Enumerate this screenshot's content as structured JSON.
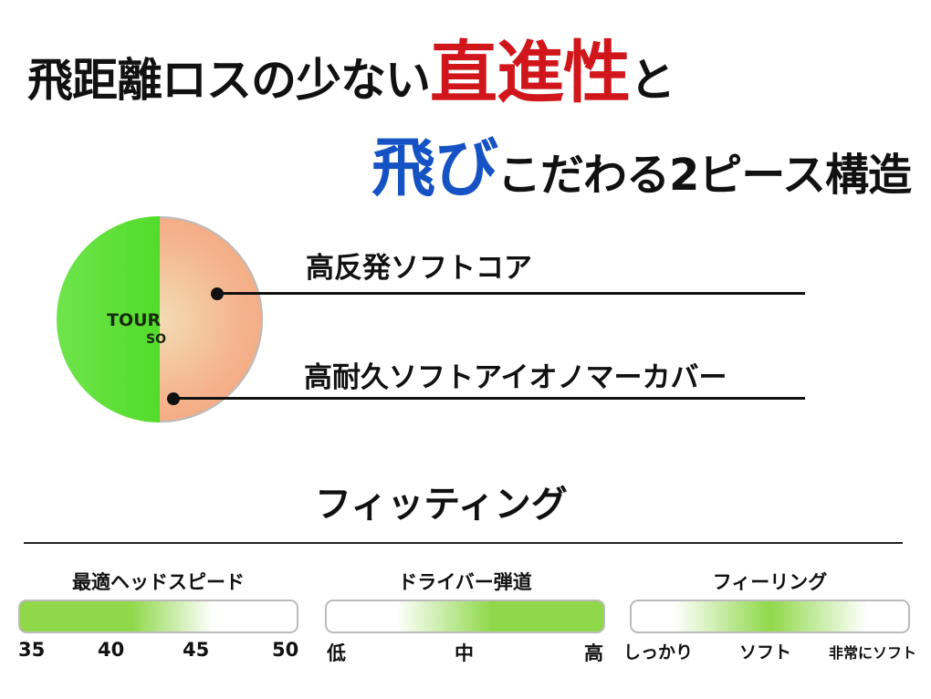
{
  "headline": {
    "line1_prefix": "飛距離ロスの少ない",
    "line1_highlight": "直進性",
    "line1_suffix": "と",
    "line2_highlight": "飛び",
    "line2_suffix": "こだわる2ピース構造"
  },
  "ball": {
    "brand_text": "TOUR",
    "sub_text": "SO"
  },
  "callouts": [
    "高反発ソフトコア",
    "高耐久ソフトアイオノマーカバー"
  ],
  "fitting": {
    "title": "フィッティング",
    "scales": [
      {
        "title": "最適ヘッドスピード",
        "ticks": [
          "35",
          "40",
          "45",
          "50"
        ],
        "highlight": "35-45"
      },
      {
        "title": "ドライバー弾道",
        "ticks": [
          "低",
          "中",
          "高"
        ],
        "highlight": "中-高"
      },
      {
        "title": "フィーリング",
        "ticks": [
          "しっかり",
          "ソフト",
          "非常にソフト"
        ],
        "highlight": "ソフト"
      }
    ],
    "bar_color": "#8fd84a"
  },
  "colors": {
    "accent_red": "#d0161b",
    "accent_blue": "#1552c4"
  }
}
